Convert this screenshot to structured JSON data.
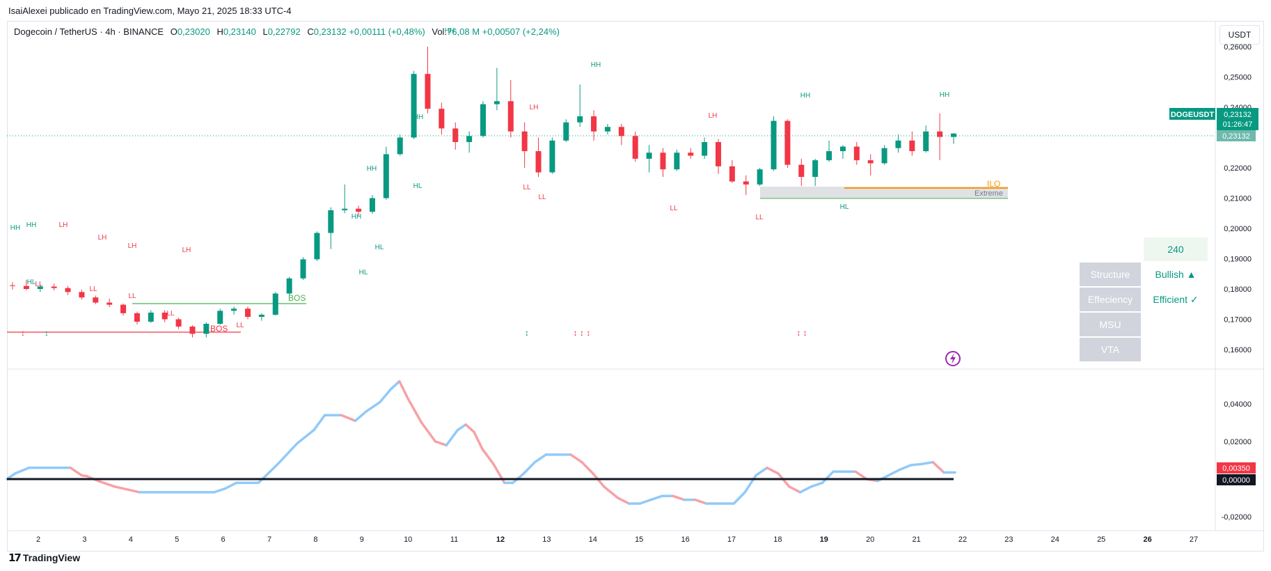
{
  "header": {
    "published": "IsaiAlexei publicado en TradingView.com, Mayo 21, 2025 18:33 UTC-4",
    "symbol": "Dogecoin / TetherUS · 4h · BINANCE",
    "o_label": "O",
    "o": "0,23020",
    "h_label": "H",
    "h": "0,23140",
    "l_label": "L",
    "l": "0,22792",
    "c_label": "C",
    "c": "0,23132",
    "change": "+0,00111 (+0,48%)",
    "vol_label": "Vol.",
    "vol": "76,08 M",
    "vol_change": "+0,00507 (+2,24%)"
  },
  "currency_button": "USDT",
  "brand": "TradingView",
  "price_tag": {
    "symbol": "DOGEUSDT",
    "price": "0,23132",
    "countdown": "01:26:47",
    "price2": "0,23132"
  },
  "osc_tags": {
    "value": "0,00350",
    "zero": "0,00000"
  },
  "panel": {
    "tf": "240",
    "rows": [
      {
        "label": "Structure",
        "value": "Bullish ▲"
      },
      {
        "label": "Effeciency",
        "value": "Efficient ✓"
      },
      {
        "label": "MSU",
        "value": ""
      },
      {
        "label": "VTA",
        "value": ""
      }
    ]
  },
  "zone_labels": {
    "ilq": "ILQ",
    "extreme": "Extreme"
  },
  "colors": {
    "up": "#089981",
    "down": "#f23645",
    "osc_up": "#90caf9",
    "osc_down": "#f7a1a6",
    "bos": "#4caf50",
    "ilq": "#ff9800"
  },
  "chart_data": [
    {
      "type": "candlestick",
      "title": "Dogecoin / TetherUS · 4h · BINANCE",
      "x_ticks": [
        "2",
        "3",
        "4",
        "5",
        "6",
        "7",
        "8",
        "9",
        "10",
        "11",
        "12",
        "13",
        "14",
        "15",
        "16",
        "17",
        "18",
        "19",
        "20",
        "21",
        "22",
        "23",
        "24",
        "25",
        "26",
        "27"
      ],
      "y_ticks": [
        "0,26000",
        "0,25000",
        "0,24000",
        "0,23000",
        "0,22000",
        "0,21000",
        "0,20000",
        "0,19000",
        "0,18000",
        "0,17000",
        "0,16000"
      ],
      "ylim": [
        0.155,
        0.262
      ],
      "candles": [
        [
          1.5,
          0.1812,
          0.1822,
          0.1798,
          0.181
        ],
        [
          1.85,
          0.181,
          0.183,
          0.1796,
          0.18
        ],
        [
          2.2,
          0.18,
          0.1815,
          0.179,
          0.1808
        ],
        [
          2.55,
          0.1808,
          0.1818,
          0.1795,
          0.1803
        ],
        [
          2.9,
          0.1803,
          0.181,
          0.178,
          0.179
        ],
        [
          3.25,
          0.179,
          0.1798,
          0.1765,
          0.1772
        ],
        [
          3.6,
          0.1772,
          0.1778,
          0.175,
          0.1755
        ],
        [
          3.95,
          0.1755,
          0.1768,
          0.174,
          0.1748
        ],
        [
          4.3,
          0.1748,
          0.1752,
          0.1712,
          0.172
        ],
        [
          4.65,
          0.172,
          0.1725,
          0.1683,
          0.1692
        ],
        [
          5.0,
          0.1692,
          0.173,
          0.1688,
          0.1722
        ],
        [
          5.35,
          0.1722,
          0.173,
          0.169,
          0.17
        ],
        [
          5.7,
          0.17,
          0.1705,
          0.1668,
          0.1676
        ],
        [
          6.05,
          0.1676,
          0.168,
          0.164,
          0.1652
        ],
        [
          6.4,
          0.1652,
          0.169,
          0.164,
          0.1685
        ],
        [
          6.75,
          0.1685,
          0.1735,
          0.1682,
          0.1728
        ],
        [
          7.1,
          0.1728,
          0.1742,
          0.1715,
          0.1735
        ],
        [
          7.45,
          0.1735,
          0.1742,
          0.17,
          0.1708
        ],
        [
          7.8,
          0.1708,
          0.172,
          0.1695,
          0.1715
        ],
        [
          8.0,
          0.1715,
          0.179,
          0.1712,
          0.1785
        ],
        [
          8.3,
          0.1785,
          0.184,
          0.178,
          0.1835
        ],
        [
          8.6,
          0.1835,
          0.1905,
          0.183,
          0.1898
        ],
        [
          8.9,
          0.1898,
          0.199,
          0.1892,
          0.1985
        ],
        [
          9.2,
          0.1985,
          0.207,
          0.1932,
          0.206
        ],
        [
          9.55,
          0.206,
          0.2145,
          0.205,
          0.2065
        ],
        [
          9.9,
          0.2065,
          0.2075,
          0.204,
          0.2055
        ],
        [
          10.2,
          0.2055,
          0.211,
          0.2048,
          0.21
        ],
        [
          10.5,
          0.21,
          0.227,
          0.2095,
          0.2245
        ],
        [
          10.8,
          0.2245,
          0.231,
          0.224,
          0.23
        ],
        [
          11.1,
          0.23,
          0.252,
          0.2295,
          0.251
        ],
        [
          11.4,
          0.251,
          0.26,
          0.238,
          0.2395
        ],
        [
          11.7,
          0.2395,
          0.2415,
          0.231,
          0.233
        ],
        [
          12.0,
          0.233,
          0.235,
          0.226,
          0.2285
        ],
        [
          12.3,
          0.2285,
          0.232,
          0.225,
          0.2305
        ],
        [
          12.6,
          0.2305,
          0.242,
          0.23,
          0.241
        ],
        [
          12.95,
          0.241,
          0.253,
          0.239,
          0.242
        ],
        [
          13.3,
          0.242,
          0.249,
          0.23,
          0.232
        ],
        [
          13.6,
          0.232,
          0.235,
          0.22,
          0.2255
        ],
        [
          13.95,
          0.2255,
          0.23,
          0.217,
          0.2185
        ],
        [
          14.25,
          0.2185,
          0.23,
          0.218,
          0.229
        ],
        [
          14.6,
          0.229,
          0.236,
          0.2285,
          0.235
        ],
        [
          14.9,
          0.235,
          0.2475,
          0.2335,
          0.237
        ],
        [
          15.2,
          0.237,
          0.239,
          0.229,
          0.232
        ],
        [
          15.5,
          0.232,
          0.2345,
          0.231,
          0.2335
        ],
        [
          15.85,
          0.2335,
          0.2345,
          0.2275,
          0.2305
        ],
        [
          16.15,
          0.2305,
          0.232,
          0.222,
          0.223
        ],
        [
          16.5,
          0.223,
          0.2275,
          0.2185,
          0.225
        ],
        [
          16.8,
          0.225,
          0.2265,
          0.217,
          0.2195
        ],
        [
          17.1,
          0.2195,
          0.226,
          0.219,
          0.225
        ],
        [
          17.4,
          0.225,
          0.2265,
          0.223,
          0.224
        ],
        [
          17.7,
          0.224,
          0.23,
          0.223,
          0.2285
        ],
        [
          18.0,
          0.2285,
          0.2295,
          0.218,
          0.2205
        ],
        [
          18.3,
          0.2205,
          0.2225,
          0.215,
          0.2155
        ],
        [
          18.6,
          0.2155,
          0.2175,
          0.211,
          0.2145
        ],
        [
          18.9,
          0.2145,
          0.22,
          0.214,
          0.2195
        ],
        [
          19.2,
          0.2195,
          0.237,
          0.219,
          0.2355
        ],
        [
          19.5,
          0.2355,
          0.236,
          0.22,
          0.221
        ],
        [
          19.8,
          0.221,
          0.223,
          0.214,
          0.217
        ],
        [
          20.1,
          0.217,
          0.223,
          0.214,
          0.2225
        ],
        [
          20.4,
          0.2225,
          0.229,
          0.222,
          0.2255
        ],
        [
          20.7,
          0.2255,
          0.2275,
          0.223,
          0.227
        ],
        [
          21.0,
          0.227,
          0.2285,
          0.221,
          0.2225
        ],
        [
          21.3,
          0.2225,
          0.2245,
          0.2175,
          0.2215
        ],
        [
          21.55,
          0.2215,
          0.2275,
          0.221,
          0.2265
        ],
        [
          21.8,
          0.2265,
          0.231,
          0.225,
          0.229
        ],
        [
          22.05,
          0.229,
          0.232,
          0.224,
          0.2255
        ],
        [
          22.3,
          0.2255,
          0.234,
          0.225,
          0.232
        ],
        [
          22.55,
          0.232,
          0.238,
          0.2225,
          0.2302
        ],
        [
          22.8,
          0.2302,
          0.2314,
          0.2279,
          0.23132
        ]
      ]
    },
    {
      "type": "line",
      "title": "",
      "y_ticks": [
        "0,04000",
        "0,02000",
        "0,00000",
        "-0,02000"
      ],
      "ylim": [
        -0.026,
        0.054
      ],
      "series": [
        {
          "values": [
            [
              0.7,
              0.0
            ],
            [
              1.0,
              0.003
            ],
            [
              1.5,
              0.006
            ],
            [
              2.0,
              0.006
            ],
            [
              2.5,
              0.006
            ],
            [
              3.0,
              0.006
            ],
            [
              3.4,
              0.002
            ],
            [
              3.6,
              0.0015
            ],
            [
              4.0,
              -0.001
            ],
            [
              4.6,
              -0.004
            ],
            [
              5.5,
              -0.007
            ],
            [
              6.5,
              -0.007
            ],
            [
              7.4,
              -0.007
            ],
            [
              8.2,
              -0.007
            ],
            [
              8.6,
              -0.005
            ],
            [
              9.0,
              -0.002
            ],
            [
              9.4,
              -0.002
            ],
            [
              9.8,
              -0.002
            ],
            [
              10.5,
              0.008
            ],
            [
              11.2,
              0.019
            ],
            [
              11.8,
              0.026
            ],
            [
              12.2,
              0.034
            ],
            [
              12.8,
              0.034
            ],
            [
              13.3,
              0.031
            ],
            [
              13.7,
              0.036
            ],
            [
              14.2,
              0.041
            ],
            [
              14.6,
              0.048
            ],
            [
              14.9,
              0.052
            ],
            [
              15.2,
              0.043
            ],
            [
              15.7,
              0.03
            ],
            [
              16.2,
              0.02
            ],
            [
              16.6,
              0.018
            ],
            [
              17.0,
              0.026
            ],
            [
              17.3,
              0.029
            ],
            [
              17.6,
              0.025
            ],
            [
              17.9,
              0.016
            ],
            [
              18.3,
              0.008
            ],
            [
              18.7,
              -0.002
            ],
            [
              19.0,
              -0.002
            ],
            [
              19.4,
              0.003
            ],
            [
              19.8,
              0.009
            ],
            [
              20.2,
              0.013
            ],
            [
              20.7,
              0.013
            ],
            [
              21.1,
              0.013
            ],
            [
              21.5,
              0.009
            ],
            [
              21.9,
              0.003
            ],
            [
              22.3,
              -0.004
            ],
            [
              22.8,
              -0.01
            ],
            [
              23.2,
              -0.013
            ],
            [
              23.6,
              -0.013
            ],
            [
              24.0,
              -0.011
            ],
            [
              24.4,
              -0.009
            ],
            [
              24.8,
              -0.009
            ],
            [
              25.2,
              -0.011
            ],
            [
              25.6,
              -0.011
            ],
            [
              26.0,
              -0.013
            ],
            [
              26.5,
              -0.013
            ],
            [
              27.0,
              -0.013
            ],
            [
              27.4,
              -0.007
            ],
            [
              27.8,
              0.002
            ],
            [
              28.2,
              0.006
            ],
            [
              28.6,
              0.003
            ],
            [
              29.0,
              -0.004
            ],
            [
              29.4,
              -0.007
            ],
            [
              29.8,
              -0.004
            ],
            [
              30.2,
              -0.002
            ],
            [
              30.6,
              0.004
            ],
            [
              31.0,
              0.004
            ],
            [
              31.4,
              0.004
            ],
            [
              31.8,
              0.0
            ],
            [
              32.2,
              -0.001
            ],
            [
              32.6,
              0.002
            ],
            [
              33.0,
              0.005
            ],
            [
              33.4,
              0.0074
            ],
            [
              33.8,
              0.008
            ],
            [
              34.2,
              0.009
            ],
            [
              34.6,
              0.0035
            ],
            [
              35.0,
              0.0035
            ]
          ]
        }
      ]
    }
  ],
  "annotations": {
    "pivots": [
      {
        "text": "HH",
        "x": 22,
        "y": 330,
        "c": "g"
      },
      {
        "text": "HH",
        "x": 45,
        "y": 326,
        "c": "g"
      },
      {
        "text": "LH",
        "x": 91,
        "y": 326,
        "c": "r"
      },
      {
        "text": "LH",
        "x": 147,
        "y": 344,
        "c": "r"
      },
      {
        "text": "LH",
        "x": 190,
        "y": 356,
        "c": "r"
      },
      {
        "text": "LH",
        "x": 268,
        "y": 362,
        "c": "r"
      },
      {
        "text": "HL",
        "x": 45,
        "y": 408,
        "c": "g"
      },
      {
        "text": "LL",
        "x": 56,
        "y": 411,
        "c": "r"
      },
      {
        "text": "LL",
        "x": 134,
        "y": 418,
        "c": "r"
      },
      {
        "text": "LL",
        "x": 190,
        "y": 428,
        "c": "r"
      },
      {
        "text": "LL",
        "x": 245,
        "y": 453,
        "c": "r"
      },
      {
        "text": "LL",
        "x": 345,
        "y": 470,
        "c": "r"
      },
      {
        "text": "HH",
        "x": 534,
        "y": 245,
        "c": "g"
      },
      {
        "text": "HH",
        "x": 512,
        "y": 314,
        "c": "g"
      },
      {
        "text": "HL",
        "x": 600,
        "y": 270,
        "c": "g"
      },
      {
        "text": "HL",
        "x": 545,
        "y": 358,
        "c": "g"
      },
      {
        "text": "HL",
        "x": 522,
        "y": 394,
        "c": "g"
      },
      {
        "text": "HH",
        "x": 601,
        "y": 171,
        "c": "g"
      },
      {
        "text": "HH",
        "x": 646,
        "y": 47,
        "c": "g"
      },
      {
        "text": "LH",
        "x": 767,
        "y": 157,
        "c": "r"
      },
      {
        "text": "LL",
        "x": 757,
        "y": 272,
        "c": "r"
      },
      {
        "text": "LL",
        "x": 779,
        "y": 286,
        "c": "r"
      },
      {
        "text": "HH",
        "x": 856,
        "y": 96,
        "c": "g"
      },
      {
        "text": "LH",
        "x": 1024,
        "y": 169,
        "c": "r"
      },
      {
        "text": "LL",
        "x": 968,
        "y": 302,
        "c": "r"
      },
      {
        "text": "LL",
        "x": 1091,
        "y": 315,
        "c": "r"
      },
      {
        "text": "HH",
        "x": 1157,
        "y": 140,
        "c": "g"
      },
      {
        "text": "HL",
        "x": 1213,
        "y": 300,
        "c": "g"
      },
      {
        "text": "HH",
        "x": 1357,
        "y": 139,
        "c": "g"
      }
    ]
  }
}
